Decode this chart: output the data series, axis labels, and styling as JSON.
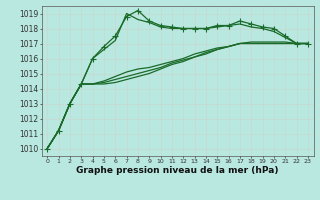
{
  "title": "Graphe pression niveau de la mer (hPa)",
  "bg_color": "#b8e8e0",
  "grid_color": "#c8d8d0",
  "line_color": "#1a6b2a",
  "x_ticks": [
    0,
    1,
    2,
    3,
    4,
    5,
    6,
    7,
    8,
    9,
    10,
    11,
    12,
    13,
    14,
    15,
    16,
    17,
    18,
    19,
    20,
    21,
    22,
    23
  ],
  "ylim": [
    1009.5,
    1019.5
  ],
  "yticks": [
    1010,
    1011,
    1012,
    1013,
    1014,
    1015,
    1016,
    1017,
    1018,
    1019
  ],
  "lines": [
    {
      "y": [
        1010.0,
        1011.2,
        1013.0,
        1014.3,
        1016.0,
        1016.8,
        1017.5,
        1018.8,
        1019.2,
        1018.5,
        1018.2,
        1018.1,
        1018.0,
        1018.0,
        1018.0,
        1018.2,
        1018.2,
        1018.5,
        1018.3,
        1018.1,
        1018.0,
        1017.5,
        1017.0,
        1017.0
      ],
      "marker": "+",
      "markersize": 4,
      "lw": 0.9
    },
    {
      "y": [
        1010.0,
        1011.2,
        1013.0,
        1014.3,
        1016.0,
        1016.6,
        1017.2,
        1019.0,
        1018.6,
        1018.4,
        1018.1,
        1018.0,
        1018.0,
        1018.0,
        1018.0,
        1018.1,
        1018.2,
        1018.3,
        1018.1,
        1018.0,
        1017.8,
        1017.4,
        1017.0,
        1017.0
      ],
      "marker": null,
      "markersize": 0,
      "lw": 0.9
    },
    {
      "y": [
        1010.0,
        1011.2,
        1013.0,
        1014.3,
        1014.3,
        1014.5,
        1014.8,
        1015.1,
        1015.3,
        1015.4,
        1015.6,
        1015.8,
        1016.0,
        1016.3,
        1016.5,
        1016.7,
        1016.8,
        1017.0,
        1017.1,
        1017.1,
        1017.1,
        1017.1,
        1017.0,
        1017.0
      ],
      "marker": null,
      "markersize": 0,
      "lw": 0.9
    },
    {
      "y": [
        1010.0,
        1011.2,
        1013.0,
        1014.3,
        1014.3,
        1014.4,
        1014.6,
        1014.8,
        1015.0,
        1015.2,
        1015.4,
        1015.7,
        1015.9,
        1016.1,
        1016.4,
        1016.6,
        1016.8,
        1017.0,
        1017.0,
        1017.0,
        1017.0,
        1017.0,
        1017.0,
        1017.0
      ],
      "marker": null,
      "markersize": 0,
      "lw": 0.9
    },
    {
      "y": [
        1010.0,
        1011.2,
        1013.0,
        1014.3,
        1014.3,
        1014.3,
        1014.4,
        1014.6,
        1014.8,
        1015.0,
        1015.3,
        1015.6,
        1015.8,
        1016.1,
        1016.3,
        1016.6,
        1016.8,
        1017.0,
        1017.0,
        1017.0,
        1017.0,
        1017.0,
        1017.0,
        1017.0
      ],
      "marker": null,
      "markersize": 0,
      "lw": 0.9
    }
  ],
  "xlabel_fontsize": 6.5,
  "ytick_fontsize": 5.5,
  "xtick_fontsize": 4.5
}
